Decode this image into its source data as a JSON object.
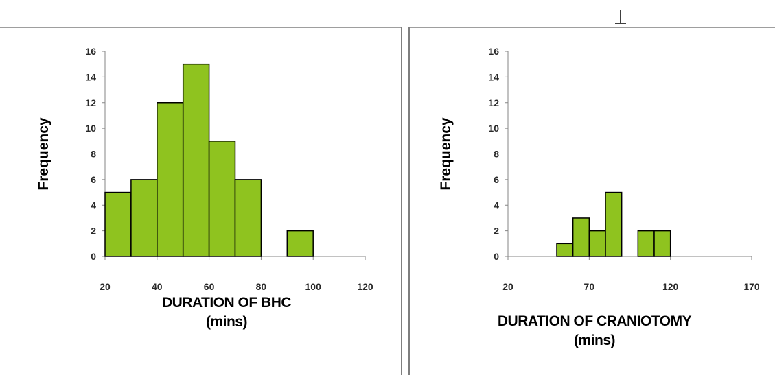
{
  "chart_data": [
    {
      "type": "bar",
      "title": "",
      "xlabel": [
        "DURATION OF BHC",
        "(mins)"
      ],
      "ylabel": "Frequency",
      "bin_width": 10,
      "bins": [
        {
          "x0": 20,
          "x1": 30,
          "value": 5
        },
        {
          "x0": 30,
          "x1": 40,
          "value": 6
        },
        {
          "x0": 40,
          "x1": 50,
          "value": 12
        },
        {
          "x0": 50,
          "x1": 60,
          "value": 15
        },
        {
          "x0": 60,
          "x1": 70,
          "value": 9
        },
        {
          "x0": 70,
          "x1": 80,
          "value": 6
        },
        {
          "x0": 90,
          "x1": 100,
          "value": 2
        }
      ],
      "xticks": [
        20,
        40,
        60,
        80,
        100,
        120
      ],
      "yticks": [
        0,
        2,
        4,
        6,
        8,
        10,
        12,
        14,
        16
      ],
      "xlim": [
        20,
        120
      ],
      "ylim": [
        0,
        16
      ],
      "bar_color": "#8fc31f",
      "grid": false,
      "legend": "none"
    },
    {
      "type": "bar",
      "title": "",
      "xlabel": [
        "DURATION OF CRANIOTOMY",
        "(mins)"
      ],
      "ylabel": "Frequency",
      "bin_width": 10,
      "bins": [
        {
          "x0": 50,
          "x1": 60,
          "value": 1
        },
        {
          "x0": 60,
          "x1": 70,
          "value": 3
        },
        {
          "x0": 70,
          "x1": 80,
          "value": 2
        },
        {
          "x0": 80,
          "x1": 90,
          "value": 5
        },
        {
          "x0": 100,
          "x1": 110,
          "value": 2
        },
        {
          "x0": 110,
          "x1": 120,
          "value": 2
        }
      ],
      "xticks": [
        20,
        70,
        120,
        170
      ],
      "yticks": [
        0,
        2,
        4,
        6,
        8,
        10,
        12,
        14,
        16
      ],
      "xlim": [
        20,
        170
      ],
      "ylim": [
        0,
        16
      ],
      "bar_color": "#8fc31f",
      "grid": false,
      "legend": "none"
    }
  ]
}
